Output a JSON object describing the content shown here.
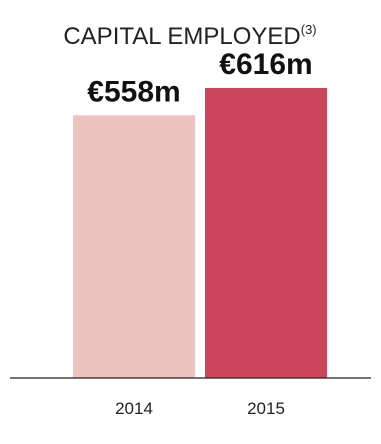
{
  "chart_data": {
    "type": "bar",
    "title": "CAPITAL EMPLOYED",
    "title_superscript": "(3)",
    "categories": [
      "2014",
      "2015"
    ],
    "values": [
      558,
      616
    ],
    "value_labels": [
      "€558m",
      "€616m"
    ],
    "colors": [
      "#ecc3bf",
      "#cc475b"
    ],
    "axis_color": "#222222",
    "xlabel": "",
    "ylabel": "",
    "grid": false,
    "legend": "none"
  }
}
